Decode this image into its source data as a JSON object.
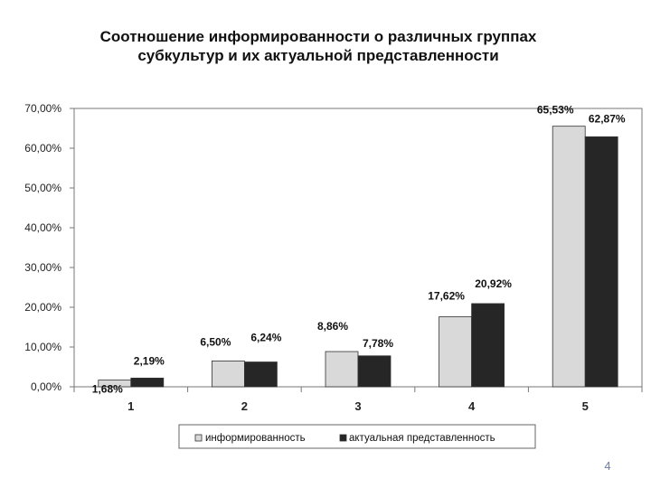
{
  "chart_data": {
    "type": "bar",
    "title": [
      "Соотношение информированности о различных группах",
      "субкультур и их актуальной представленности"
    ],
    "categories": [
      "1",
      "2",
      "3",
      "4",
      "5"
    ],
    "series": [
      {
        "name": "информированность",
        "values": [
          1.68,
          6.5,
          8.86,
          17.62,
          65.53
        ],
        "labels": [
          "1,68%",
          "6,50%",
          "8,86%",
          "17,62%",
          "65,53%"
        ],
        "color": "#d9d9d9"
      },
      {
        "name": "актуальная представленность",
        "values": [
          2.19,
          6.24,
          7.78,
          20.92,
          62.87
        ],
        "labels": [
          "2,19%",
          "6,24%",
          "7,78%",
          "20,92%",
          "62,87%"
        ],
        "color": "#262626"
      }
    ],
    "yticks": [
      "0,00%",
      "10,00%",
      "20,00%",
      "30,00%",
      "40,00%",
      "50,00%",
      "60,00%",
      "70,00%"
    ],
    "ylim": [
      0,
      70
    ],
    "ystep": 10,
    "grid": false,
    "legend_position": "bottom"
  },
  "page_number": "4"
}
